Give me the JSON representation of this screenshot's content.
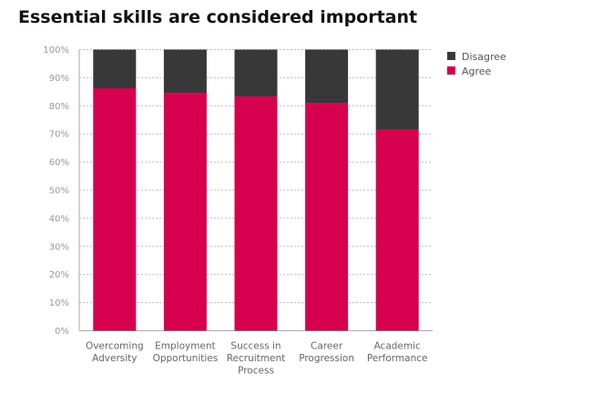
{
  "chart_data": {
    "type": "bar",
    "stacked": true,
    "title": "Essential skills are considered important",
    "xlabel": "",
    "ylabel": "",
    "ylim": [
      0,
      100
    ],
    "yticks": [
      "0%",
      "10%",
      "20%",
      "30%",
      "40%",
      "50%",
      "60%",
      "70%",
      "80%",
      "90%",
      "100%"
    ],
    "grid": true,
    "legend_position": "top-right",
    "categories": [
      [
        "Overcoming",
        "Adversity"
      ],
      [
        "Employment",
        "Opportunities"
      ],
      [
        "Success in",
        "Recruitment",
        "Process"
      ],
      [
        "Career",
        "Progression"
      ],
      [
        "Academic",
        "Performance"
      ]
    ],
    "series": [
      {
        "name": "Agree",
        "color": "#d6004f",
        "values": [
          86.1,
          84.5,
          83.2,
          80.8,
          71.4
        ]
      },
      {
        "name": "Disagree",
        "color": "#383838",
        "values": [
          13.9,
          15.5,
          16.8,
          19.2,
          28.6
        ]
      }
    ],
    "legend_order": [
      "Disagree",
      "Agree"
    ]
  }
}
